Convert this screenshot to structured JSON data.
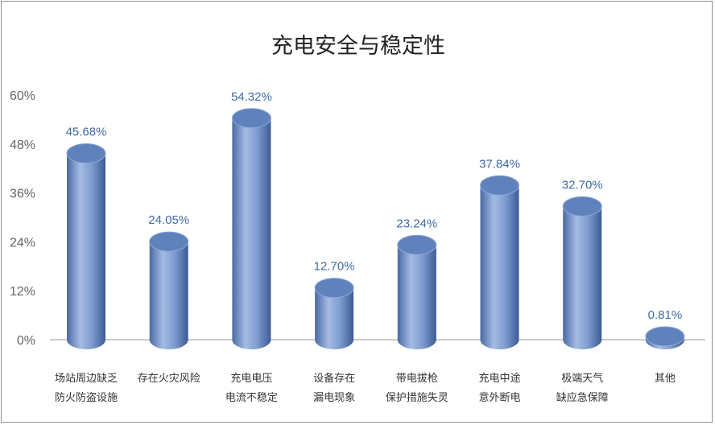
{
  "chart_data": {
    "type": "bar",
    "title": "充电安全与稳定性",
    "categories": [
      [
        "场站周边缺乏",
        "防火防盗设施"
      ],
      [
        "存在火灾风险"
      ],
      [
        "充电电压",
        "电流不稳定"
      ],
      [
        "设备存在",
        "漏电现象"
      ],
      [
        "带电拔枪",
        "保护措施失灵"
      ],
      [
        "充电中途",
        "意外断电"
      ],
      [
        "极端天气",
        "缺应急保障"
      ],
      [
        "其他"
      ]
    ],
    "values": [
      45.68,
      24.05,
      54.32,
      12.7,
      23.24,
      37.84,
      32.7,
      0.81
    ],
    "value_labels": [
      "45.68%",
      "24.05%",
      "54.32%",
      "12.70%",
      "23.24%",
      "37.84%",
      "32.70%",
      "0.81%"
    ],
    "ylim": [
      0,
      60
    ],
    "yticks": [
      "0%",
      "12%",
      "24%",
      "36%",
      "48%",
      "60%"
    ],
    "ytick_values": [
      0,
      12,
      24,
      36,
      48,
      60
    ],
    "xlabel": "",
    "ylabel": "",
    "grid": false,
    "legend": "none",
    "colors": {
      "bar_light": "#9bb3dc",
      "bar_mid": "#6f8fc4",
      "bar_dark": "#3f5f99",
      "bar_top": "#5f82bd",
      "value_text": "#3f6aa6",
      "axis": "#999999"
    }
  }
}
